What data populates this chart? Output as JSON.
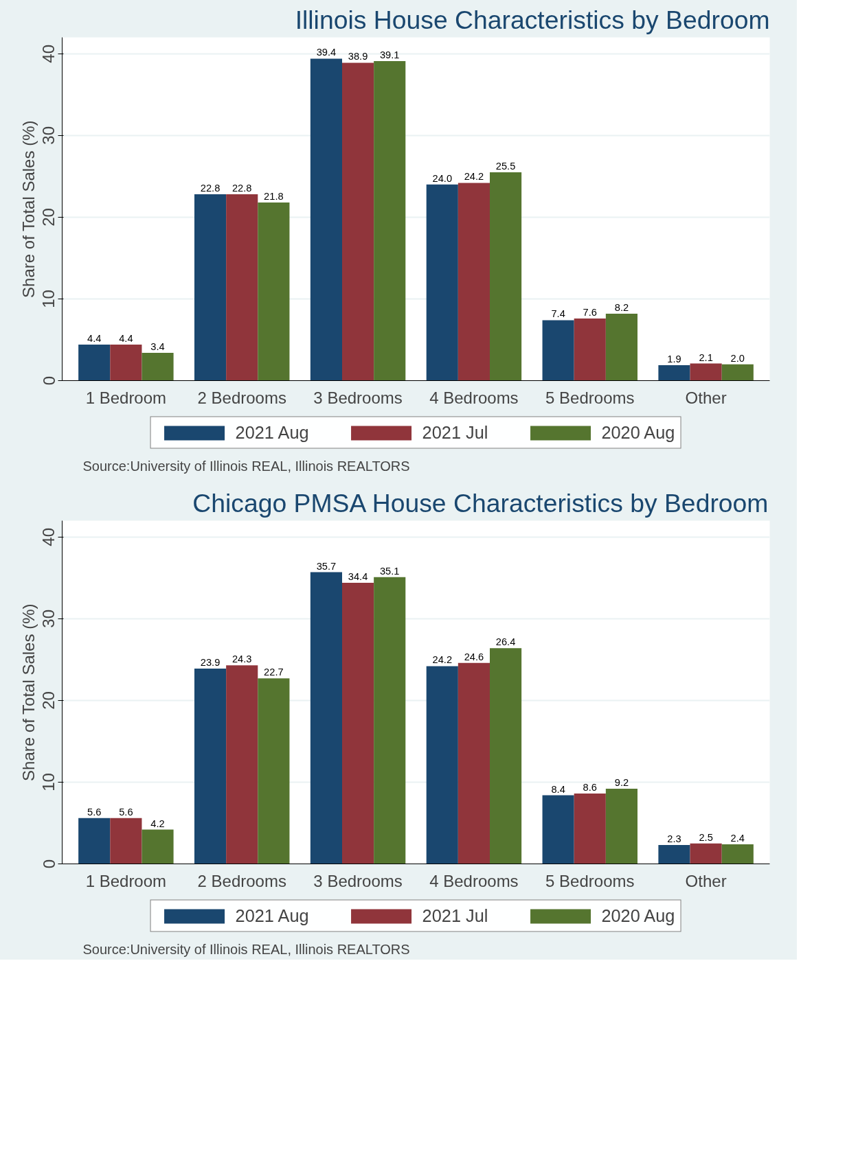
{
  "chart_data": [
    {
      "type": "bar",
      "title": "Illinois House Characteristics by Bedroom",
      "ylabel": "Share of Total Sales (%)",
      "categories": [
        "1 Bedroom",
        "2 Bedrooms",
        "3 Bedrooms",
        "4 Bedrooms",
        "5 Bedrooms",
        "Other"
      ],
      "series": [
        {
          "name": "2021 Aug",
          "color": "#1a476f",
          "values": [
            4.4,
            22.8,
            39.4,
            24.0,
            7.4,
            1.9
          ],
          "value_labels": [
            "4.4",
            "22.8",
            "39.4",
            "24.0",
            "7.4",
            "1.9"
          ]
        },
        {
          "name": "2021 Jul",
          "color": "#90353b",
          "values": [
            4.4,
            22.8,
            38.9,
            24.2,
            7.6,
            2.1
          ],
          "value_labels": [
            "4.4",
            "22.8",
            "38.9",
            "24.2",
            "7.6",
            "2.1"
          ]
        },
        {
          "name": "2020 Aug",
          "color": "#55752f",
          "values": [
            3.4,
            21.8,
            39.1,
            25.5,
            8.2,
            2.0
          ],
          "value_labels": [
            "3.4",
            "21.8",
            "39.1",
            "25.5",
            "8.2",
            "2.0"
          ]
        }
      ],
      "ylim": [
        0,
        42
      ],
      "yticks": [
        0,
        10,
        20,
        30,
        40
      ],
      "grid": "y",
      "legend": "bottom",
      "annotations": [
        "Source:University of Illinois REAL, Illinois REALTORS"
      ]
    },
    {
      "type": "bar",
      "title": "Chicago PMSA House Characteristics by Bedroom",
      "ylabel": "Share of Total Sales (%)",
      "categories": [
        "1 Bedroom",
        "2 Bedrooms",
        "3 Bedrooms",
        "4 Bedrooms",
        "5 Bedrooms",
        "Other"
      ],
      "series": [
        {
          "name": "2021 Aug",
          "color": "#1a476f",
          "values": [
            5.6,
            23.9,
            35.7,
            24.2,
            8.4,
            2.3
          ],
          "value_labels": [
            "5.6",
            "23.9",
            "35.7",
            "24.2",
            "8.4",
            "2.3"
          ]
        },
        {
          "name": "2021 Jul",
          "color": "#90353b",
          "values": [
            5.6,
            24.3,
            34.4,
            24.6,
            8.6,
            2.5
          ],
          "value_labels": [
            "5.6",
            "24.3",
            "34.4",
            "24.6",
            "8.6",
            "2.5"
          ]
        },
        {
          "name": "2020 Aug",
          "color": "#55752f",
          "values": [
            4.2,
            22.7,
            35.1,
            26.4,
            9.2,
            2.4
          ],
          "value_labels": [
            "4.2",
            "22.7",
            "35.1",
            "26.4",
            "9.2",
            "2.4"
          ]
        }
      ],
      "ylim": [
        0,
        42
      ],
      "yticks": [
        0,
        10,
        20,
        30,
        40
      ],
      "grid": "y",
      "legend": "bottom",
      "annotations": [
        "Source:University of Illinois REAL, Illinois REALTORS"
      ]
    }
  ]
}
